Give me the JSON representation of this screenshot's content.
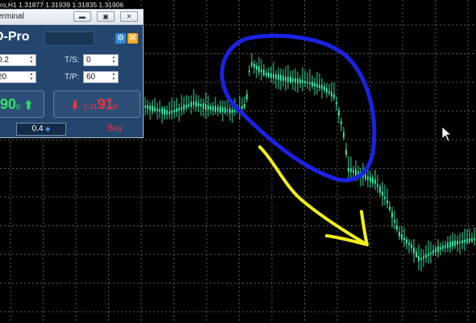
{
  "chart": {
    "header": "ro,H1  1.31877  1.31939  1.31835  1.31906",
    "colors": {
      "background": "#000000",
      "grid": "#5a5a5a",
      "candles": "#2ee0a0",
      "annotation_circle": "#1a22e6",
      "annotation_arrow": "#f2ef1a"
    }
  },
  "terminal": {
    "title": "erminal",
    "symbol": "D-Pro",
    "fields": {
      "lot_left": "0.2",
      "sl_left": "20",
      "ts_label": "T/S:",
      "ts_value": "0",
      "tp_label": "T/P:",
      "tp_value": "60"
    },
    "sell_price": {
      "big": "90",
      "small": "6"
    },
    "buy_price": {
      "prefix": "1.31",
      "big": "91",
      "small": "0"
    },
    "lot": "0.4",
    "buy_label": "Buy",
    "icons": {
      "gear": "gear-icon",
      "settings": "settings-icon"
    }
  }
}
